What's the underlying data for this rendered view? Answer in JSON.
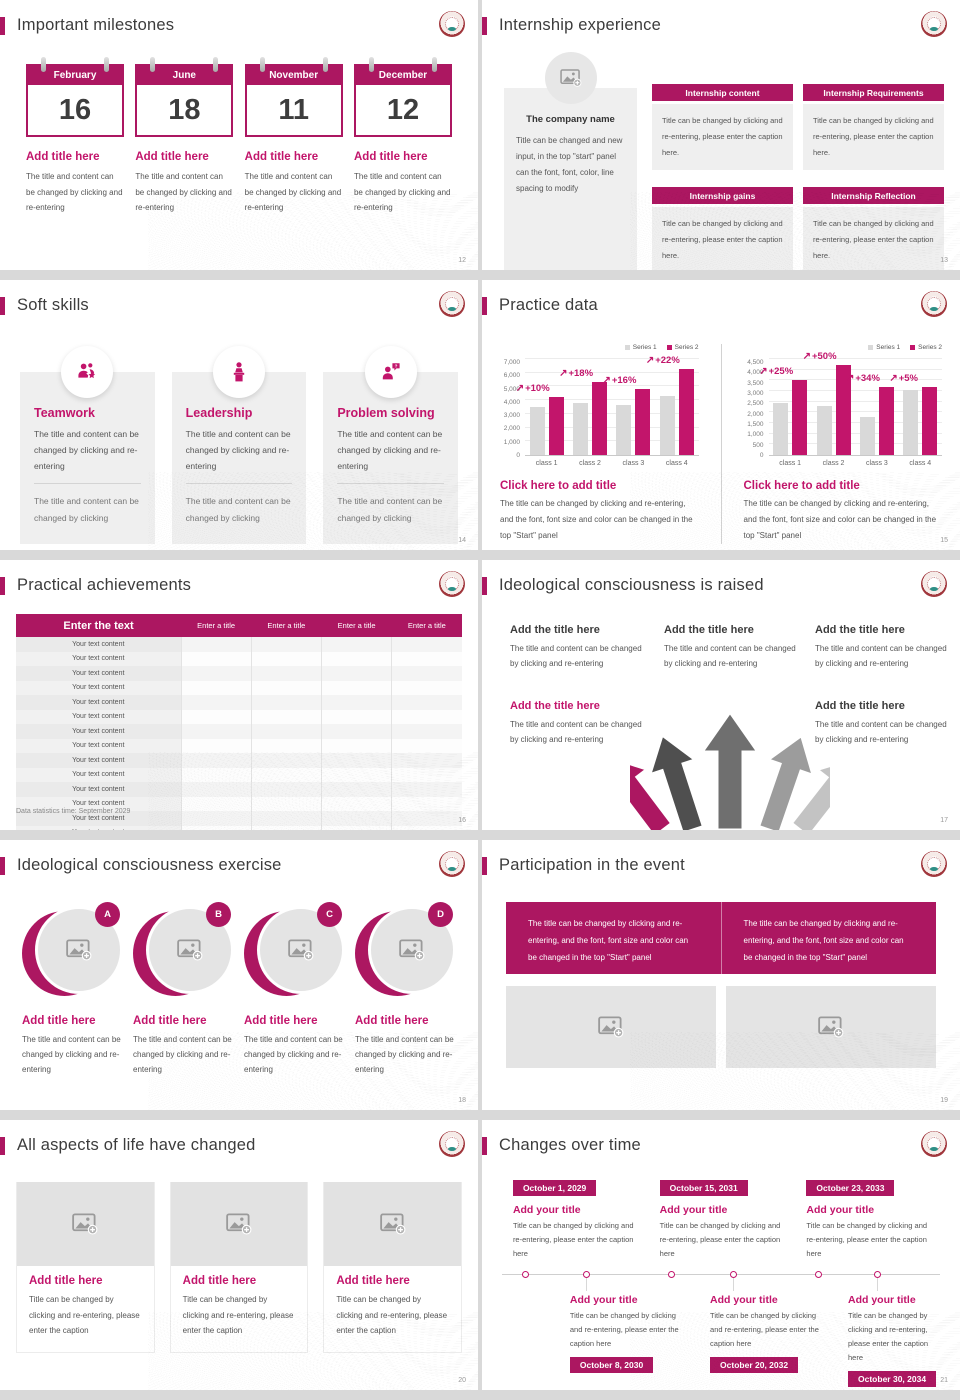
{
  "colors": {
    "accent": "#AC1761",
    "accent_bright": "#C2156B",
    "series1_gray": "#D9D9D9",
    "logo_maroon": "#A1373D"
  },
  "chart_data": [
    {
      "type": "bar",
      "title": "",
      "categories": [
        "class 1",
        "class 2",
        "class 3",
        "class 4"
      ],
      "series": [
        {
          "name": "Series 1",
          "color": "#D9D9D9",
          "values": [
            3500,
            3800,
            3650,
            4300
          ]
        },
        {
          "name": "Series 2",
          "color": "#C2156B",
          "values": [
            4200,
            5300,
            4800,
            6250
          ]
        }
      ],
      "annotations": [
        "+10%",
        "+18%",
        "+16%",
        "+22%"
      ],
      "xlabel": "",
      "ylabel": "",
      "ylim": [
        0,
        7000
      ],
      "ytick_step": 1000,
      "grid": true,
      "legend_position": "top-right"
    },
    {
      "type": "bar",
      "title": "",
      "categories": [
        "class 1",
        "class 2",
        "class 3",
        "class 4"
      ],
      "series": [
        {
          "name": "Series 1",
          "color": "#D9D9D9",
          "values": [
            2450,
            2300,
            1800,
            3050
          ]
        },
        {
          "name": "Series 2",
          "color": "#C2156B",
          "values": [
            3500,
            4200,
            3200,
            3200
          ]
        }
      ],
      "annotations": [
        "+25%",
        "+50%",
        "+34%",
        "+5%"
      ],
      "xlabel": "",
      "ylabel": "",
      "ylim": [
        0,
        4500
      ],
      "ytick_step": 500,
      "grid": true,
      "legend_position": "top-right"
    }
  ],
  "slides": [
    {
      "title": "Important milestones",
      "page_no": "12",
      "items": [
        {
          "month": "February",
          "day": "16",
          "title": "Add title here",
          "body": "The title and content can be changed by clicking and re-entering"
        },
        {
          "month": "June",
          "day": "18",
          "title": "Add title here",
          "body": "The title and content can be changed by clicking and re-entering"
        },
        {
          "month": "November",
          "day": "11",
          "title": "Add title here",
          "body": "The title and content can be changed by clicking and re-entering"
        },
        {
          "month": "December",
          "day": "12",
          "title": "Add title here",
          "body": "The title and content can be changed by clicking and re-entering"
        }
      ]
    },
    {
      "title": "Internship experience",
      "page_no": "13",
      "company": {
        "name": "The company name",
        "body": "Title can be changed and new input, in the top \"start\" panel can the font, font, color, line spacing to modify"
      },
      "boxes": [
        {
          "header": "Internship content",
          "body": "Title can be changed by clicking and re-entering, please enter the caption here."
        },
        {
          "header": "Internship Requirements",
          "body": "Title can be changed by clicking and re-entering, please enter the caption here."
        },
        {
          "header": "Internship gains",
          "body": "Title can be changed by clicking and re-entering, please enter the caption here."
        },
        {
          "header": "Internship Reflection",
          "body": "Title can be changed by clicking and re-entering, please enter the caption here."
        }
      ]
    },
    {
      "title": "Soft skills",
      "page_no": "14",
      "cards": [
        {
          "icon": "teamwork-icon",
          "title": "Teamwork",
          "body": "The title and content can be changed by clicking and re-entering",
          "body2": "The title and content can be changed by clicking"
        },
        {
          "icon": "leadership-icon",
          "title": "Leadership",
          "body": "The title and content can be changed by clicking and re-entering",
          "body2": "The title and content can be changed by clicking"
        },
        {
          "icon": "problem-solving-icon",
          "title": "Problem solving",
          "body": "The title and content can be changed by clicking and re-entering",
          "body2": "The title and content can be changed by clicking"
        }
      ]
    },
    {
      "title": "Practice data",
      "page_no": "15",
      "panels": [
        {
          "caption_title": "Click here to add title",
          "caption_body": "The title can be changed by clicking and re-entering, and the font, font size and color can be changed in the top \"Start\" panel"
        },
        {
          "caption_title": "Click here to add title",
          "caption_body": "The title can be changed by clicking and re-entering, and the font, font size and color can be changed in the top \"Start\" panel"
        }
      ]
    },
    {
      "title": "Practical achievements",
      "page_no": "16",
      "table": {
        "headers": [
          "Enter the text",
          "Enter a title",
          "Enter a title",
          "Enter a title",
          "Enter a title"
        ],
        "rows": [
          "Your text content",
          "Your text content",
          "Your text content",
          "Your text content",
          "Your text content",
          "Your text content",
          "Your text content",
          "Your text content",
          "Your text content",
          "Your text content",
          "Your text content",
          "Your text content",
          "Your text content",
          "Your text content"
        ]
      },
      "footnote": "Data statistics time: September 2029"
    },
    {
      "title": "Ideological consciousness is raised",
      "page_no": "17",
      "blocks": [
        {
          "title": "Add the title here",
          "body": "The title and content can be changed by clicking and re-entering",
          "accent": false
        },
        {
          "title": "Add the title here",
          "body": "The title and content can be changed by clicking and re-entering",
          "accent": false
        },
        {
          "title": "Add the title here",
          "body": "The title and content can be changed by clicking and re-entering",
          "accent": false
        },
        {
          "title": "Add the title here",
          "body": "The title and content can be changed by clicking and re-entering",
          "accent": true
        },
        {
          "title": "Add the title here",
          "body": "The title and content can be changed by clicking and re-entering",
          "accent": false
        }
      ]
    },
    {
      "title": "Ideological consciousness exercise",
      "page_no": "18",
      "items": [
        {
          "letter": "A",
          "title": "Add title here",
          "body": "The title and content can be changed by clicking and re-entering"
        },
        {
          "letter": "B",
          "title": "Add title here",
          "body": "The title and content can be changed by clicking and re-entering"
        },
        {
          "letter": "C",
          "title": "Add title here",
          "body": "The title and content can be changed by clicking and re-entering"
        },
        {
          "letter": "D",
          "title": "Add title here",
          "body": "The title and content can be changed by clicking and re-entering"
        }
      ]
    },
    {
      "title": "Participation in the event",
      "page_no": "19",
      "banner": [
        "The title can be changed by clicking and re-entering, and the font, font size and color can be changed in the top \"Start\" panel",
        "The title can be changed by clicking and re-entering, and the font, font size and color can be changed in the top \"Start\" panel"
      ]
    },
    {
      "title": "All aspects of life have changed",
      "page_no": "20",
      "cards": [
        {
          "title": "Add title here",
          "body": "Title can be changed by clicking and re-entering, please enter the caption"
        },
        {
          "title": "Add title here",
          "body": "Title can be changed by clicking and re-entering, please enter the caption"
        },
        {
          "title": "Add title here",
          "body": "Title can be changed by clicking and re-entering, please enter the caption"
        }
      ]
    },
    {
      "title": "Changes over time",
      "page_no": "21",
      "top": [
        {
          "date": "October 1, 2029",
          "title": "Add your title",
          "body": "Title can be changed by clicking and re-entering, please enter the caption here"
        },
        {
          "date": "October 15, 2031",
          "title": "Add your title",
          "body": "Title can be changed by clicking and re-entering, please enter the caption here"
        },
        {
          "date": "October 23, 2033",
          "title": "Add your title",
          "body": "Title can be changed by clicking and re-entering, please enter the caption here"
        }
      ],
      "bottom": [
        {
          "title": "Add your title",
          "body": "Title can be changed by clicking and re-entering, please enter the caption here",
          "date": "October 8, 2030"
        },
        {
          "title": "Add your title",
          "body": "Title can be changed by clicking and re-entering, please enter the caption here",
          "date": "October 20, 2032"
        },
        {
          "title": "Add your title",
          "body": "Title can be changed by clicking and re-entering, please enter the caption here",
          "date": "October 30, 2034"
        }
      ]
    }
  ]
}
